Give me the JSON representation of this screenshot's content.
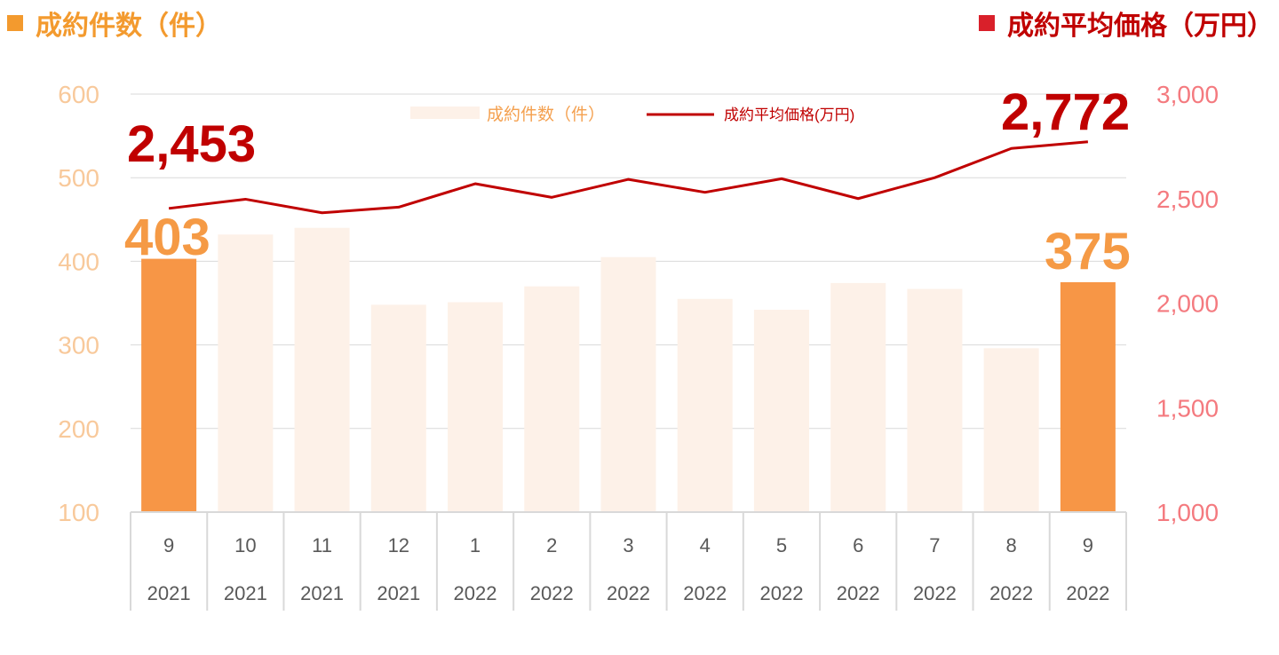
{
  "legend_left": "成約件数（件）",
  "legend_right": "成約平均価格（万円）",
  "colors": {
    "bar_highlight": "#f79646",
    "bar_faded": "#fdf1e8",
    "line": "#c00000",
    "left_axis": "#f8c99b",
    "right_axis": "#f47a7f",
    "grid": "#d9d9d9"
  },
  "chart_data": {
    "type": "bar",
    "categories": [
      "9",
      "10",
      "11",
      "12",
      "1",
      "2",
      "3",
      "4",
      "5",
      "6",
      "7",
      "8",
      "9"
    ],
    "years": [
      "2021",
      "2021",
      "2021",
      "2021",
      "2022",
      "2022",
      "2022",
      "2022",
      "2022",
      "2022",
      "2022",
      "2022",
      "2022"
    ],
    "series": [
      {
        "name": "成約件数（件）",
        "type": "bar",
        "axis": "left",
        "values": [
          403,
          432,
          440,
          348,
          351,
          370,
          405,
          355,
          342,
          374,
          367,
          296,
          375
        ],
        "highlight": [
          true,
          false,
          false,
          false,
          false,
          false,
          false,
          false,
          false,
          false,
          false,
          false,
          true
        ]
      },
      {
        "name": "成約平均価格(万円)",
        "type": "line",
        "axis": "right",
        "values": [
          2453,
          2497,
          2432,
          2459,
          2571,
          2506,
          2592,
          2530,
          2595,
          2500,
          2600,
          2740,
          2772
        ]
      }
    ],
    "yleft": {
      "lim": [
        100,
        600
      ],
      "ticks": [
        "100",
        "200",
        "300",
        "400",
        "500",
        "600"
      ]
    },
    "yright": {
      "lim": [
        1000,
        3000
      ],
      "ticks": [
        "1,000",
        "1,500",
        "2,000",
        "2,500",
        "3,000"
      ]
    },
    "annotations": {
      "first_count": "403",
      "last_count": "375",
      "first_price": "2,453",
      "last_price": "2,772"
    },
    "legend_position": "top-center",
    "grid": true
  }
}
